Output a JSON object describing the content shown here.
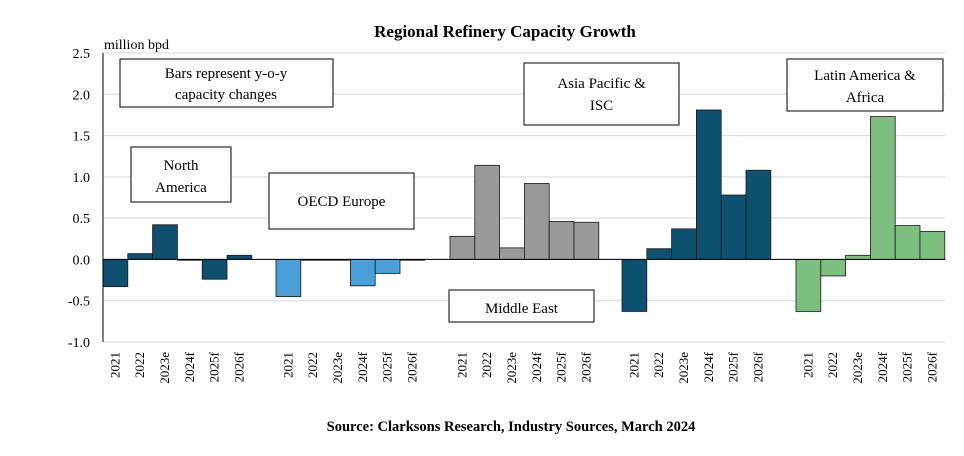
{
  "chart_data": {
    "type": "bar",
    "title": "Regional Refinery Capacity Growth",
    "ylabel": "million bpd",
    "ylim": [
      -1.0,
      2.5
    ],
    "yticks": [
      "2.5",
      "2.0",
      "1.5",
      "1.0",
      "0.5",
      "0.0",
      "-0.5",
      "-1.0"
    ],
    "ytick_values": [
      2.5,
      2.0,
      1.5,
      1.0,
      0.5,
      0.0,
      -0.5,
      -1.0
    ],
    "grid": true,
    "source": "Source: Clarksons Research, Industry Sources, March 2024",
    "note": [
      "Bars represent y-o-y",
      "capacity changes"
    ],
    "categories": [
      "2021",
      "2022",
      "2023e",
      "2024f",
      "2025f",
      "2026f"
    ],
    "groups": [
      {
        "name": "North America",
        "label_lines": [
          "North",
          "America"
        ],
        "color": "#0e4e6e",
        "values": [
          -0.33,
          0.07,
          0.42,
          -0.01,
          -0.24,
          0.05
        ]
      },
      {
        "name": "OECD Europe",
        "label_lines": [
          "OECD Europe"
        ],
        "color": "#4a9fd8",
        "values": [
          -0.45,
          0.0,
          -0.01,
          -0.32,
          -0.17,
          0.0
        ]
      },
      {
        "name": "Middle East",
        "label_lines": [
          "Middle East"
        ],
        "color": "#9a9a9a",
        "values": [
          0.28,
          1.14,
          0.14,
          0.92,
          0.46,
          0.45
        ]
      },
      {
        "name": "Asia Pacific & ISC",
        "label_lines": [
          "Asia Pacific &",
          "ISC"
        ],
        "color": "#0d5070",
        "values": [
          -0.63,
          0.13,
          0.37,
          1.81,
          0.78,
          1.08
        ]
      },
      {
        "name": "Latin America & Africa",
        "label_lines": [
          "Latin America &",
          "Africa"
        ],
        "color": "#7dbf7f",
        "values": [
          -0.63,
          -0.2,
          0.05,
          1.73,
          0.41,
          0.34
        ]
      }
    ]
  }
}
